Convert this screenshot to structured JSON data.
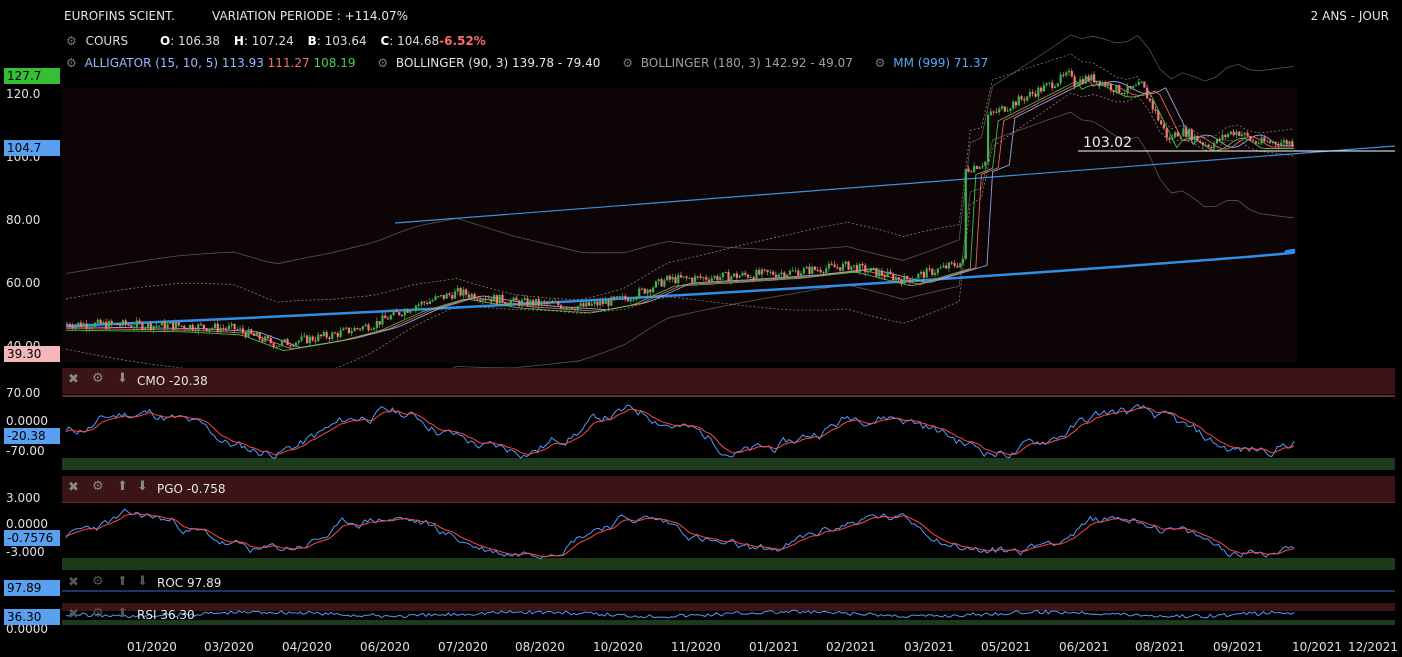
{
  "header": {
    "title": "EUROFINS SCIENT.",
    "variation": "VARIATION PERIODE : +114.07%",
    "timeframe": "2 ANS - JOUR"
  },
  "quote": {
    "label": "COURS",
    "o_label": "O",
    "o": ": 106.38",
    "h_label": "H",
    "h": ": 107.24",
    "b_label": "B",
    "b": ": 103.64",
    "c_label": "C",
    "c": ": 104.68",
    "change": "-6.52%"
  },
  "indicators": {
    "alligator_label": "ALLIGATOR (15, 10, 5)",
    "alligator_v1": "113.93",
    "alligator_v2": "111.27",
    "alligator_v3": "108.19",
    "boll1_label": "BOLLINGER (90, 3)",
    "boll1_values": "139.78 - 79.40",
    "boll2_label": "BOLLINGER (180, 3)",
    "boll2_values": "142.92 - 49.07",
    "mm_label": "MM (999)",
    "mm_value": "71.37"
  },
  "price_axis": {
    "ticks": [
      "120.0",
      "100.0",
      "80.00",
      "60.00",
      "40.00"
    ],
    "tag_high": "127.7",
    "tag_close": "104.7",
    "tag_low": "39.30",
    "level_label": "103.02"
  },
  "panels": {
    "cmo": {
      "name": "CMO",
      "value": "-20.38",
      "tag": "-20.38",
      "ticks": [
        "70.00",
        "0.0000",
        "-70.00"
      ]
    },
    "pgo": {
      "name": "PGO",
      "value": "-0.758",
      "tag": "-0.7576",
      "ticks": [
        "3.000",
        "0.0000",
        "-3.000"
      ]
    },
    "roc": {
      "name": "ROC",
      "value": "97.89",
      "tag": "97.89"
    },
    "rsi": {
      "name": "RSI",
      "value": "36.30",
      "tag": "36.30",
      "ticks": [
        "0.0000"
      ]
    }
  },
  "x_axis": [
    "01/2020",
    "03/2020",
    "04/2020",
    "06/2020",
    "07/2020",
    "08/2020",
    "10/2020",
    "11/2020",
    "01/2021",
    "02/2021",
    "03/2021",
    "05/2021",
    "06/2021",
    "08/2021",
    "09/2021",
    "10/2021",
    "12/2021"
  ],
  "colors": {
    "up": "#3fb24a",
    "down": "#f27a7a",
    "mm_line": "#2f8fe8",
    "trend_line": "#3a8fe0",
    "panel_bar": "#3a1416",
    "overbought": "#d05050",
    "oversold": "#1c3a1c",
    "tag_green": "#34c034",
    "tag_blue": "#5aa0f0",
    "tag_pink": "#f5b8b8"
  },
  "icons": [
    "gear-icon",
    "close-icon",
    "arrow-up-icon",
    "arrow-down-icon"
  ]
}
